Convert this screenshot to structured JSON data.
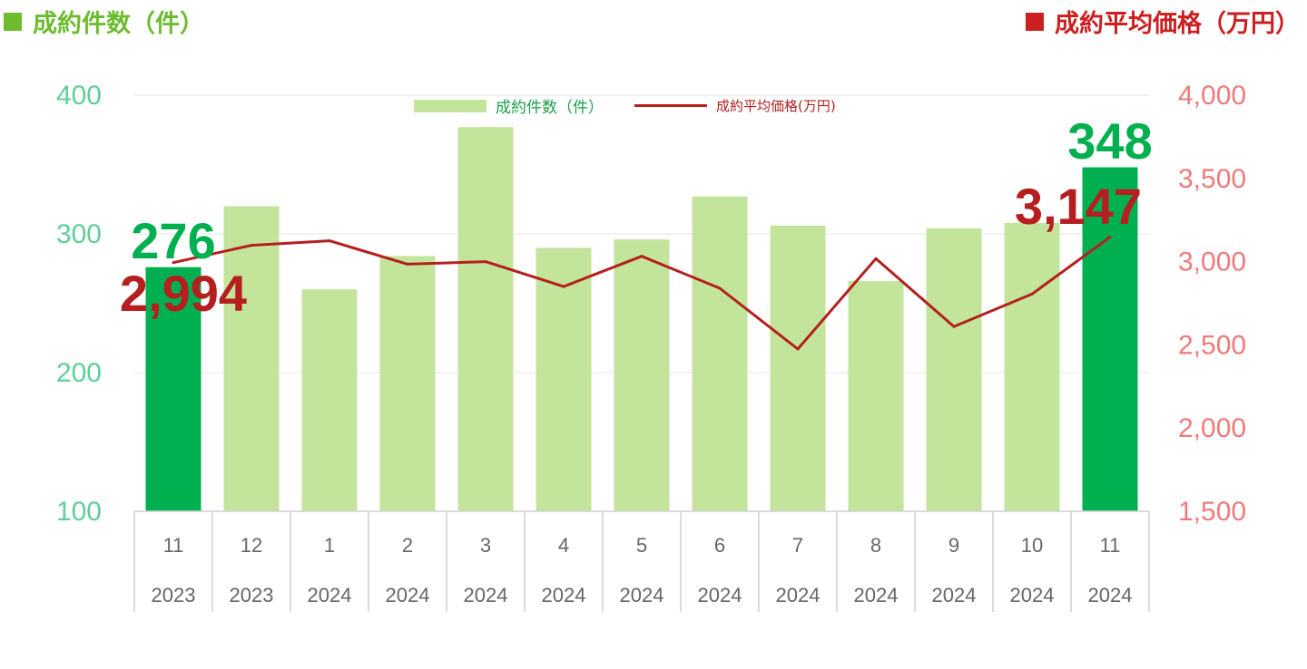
{
  "header": {
    "left_title": "成約件数（件）",
    "right_title": "成約平均価格（万円）"
  },
  "colors": {
    "bar": "#c3e59b",
    "bar_highlight": "#00b050",
    "line": "#b51f1f",
    "left_axis": "#5fcf9a",
    "right_axis": "#f07a7a",
    "header_left": "#6cbc2e",
    "header_right": "#cc1f1f"
  },
  "chart_data": {
    "type": "bar",
    "categories": [
      "11",
      "12",
      "1",
      "2",
      "3",
      "4",
      "5",
      "6",
      "7",
      "8",
      "9",
      "10",
      "11"
    ],
    "years": [
      "2023",
      "2023",
      "2024",
      "2024",
      "2024",
      "2024",
      "2024",
      "2024",
      "2024",
      "2024",
      "2024",
      "2024",
      "2024"
    ],
    "series": [
      {
        "name": "成約件数（件）",
        "type": "bar",
        "axis": "left",
        "values": [
          276,
          320,
          260,
          284,
          377,
          290,
          296,
          327,
          306,
          266,
          304,
          308,
          348
        ],
        "highlight": [
          0,
          12
        ]
      },
      {
        "name": "成約平均価格(万円)",
        "type": "line",
        "axis": "right",
        "values": [
          2994,
          3098,
          3125,
          2985,
          3000,
          2850,
          3032,
          2840,
          2475,
          3018,
          2610,
          2805,
          3147
        ]
      }
    ],
    "y_left": {
      "min": 100,
      "max": 400,
      "ticks": [
        "100",
        "200",
        "300",
        "400"
      ]
    },
    "y_right": {
      "min": 1500,
      "max": 4000,
      "ticks": [
        "1,500",
        "2,000",
        "2,500",
        "3,000",
        "3,500",
        "4,000"
      ]
    },
    "grid": true,
    "legend_position": "top-center",
    "annotations": [
      {
        "text": "276",
        "series": "bar",
        "index": 0
      },
      {
        "text": "2,994",
        "series": "line",
        "index": 0
      },
      {
        "text": "348",
        "series": "bar",
        "index": 12
      },
      {
        "text": "3,147",
        "series": "line",
        "index": 12
      }
    ]
  },
  "legend": {
    "bar_label": "成約件数（件）",
    "line_label": "成約平均価格(万円)"
  }
}
